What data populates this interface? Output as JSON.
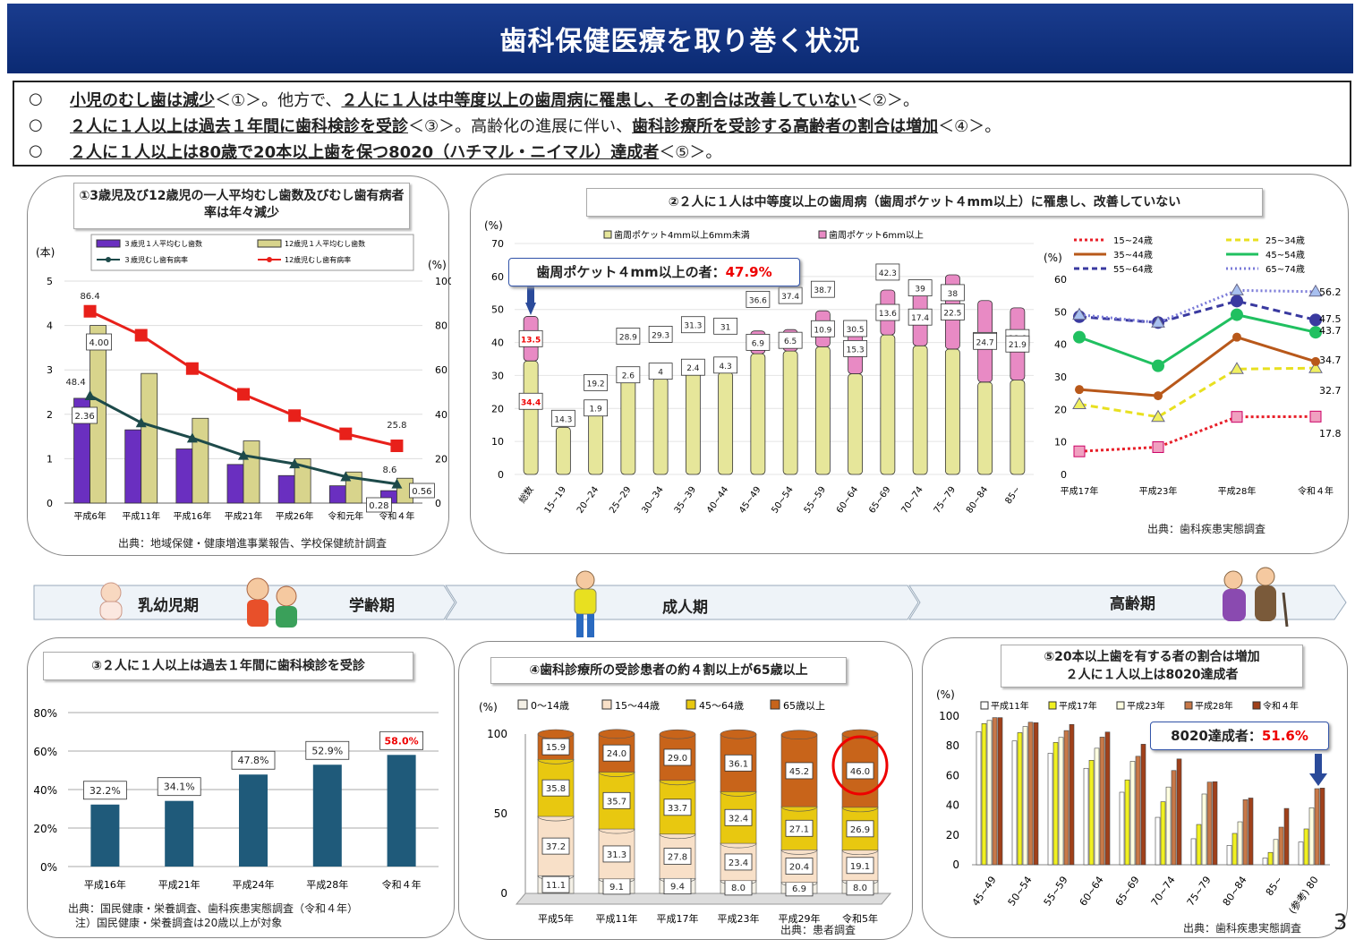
{
  "title": "歯科保健医療を取り巻く状況",
  "page_number": "3",
  "summary": [
    {
      "mark": "○",
      "a": "小児のむし歯は減少",
      "b": "＜①＞。他方で、",
      "c": "２人に１人は中等度以上の歯周病に罹患し、その割合は改善していない",
      "d": "＜②＞。"
    },
    {
      "mark": "○",
      "a": "２人に１人以上は過去１年間に歯科検診を受診",
      "b": "＜③＞。高齢化の進展に伴い、",
      "c": "歯科診療所を受診する高齢者の割合は増加",
      "d": "＜④＞。"
    },
    {
      "mark": "○",
      "a": "２人に１人以上は80歳で20本以上歯を保つ8020（ハチマル・ニイマル）達成者",
      "b": "＜⑤＞。",
      "c": "",
      "d": ""
    }
  ],
  "stages": [
    "乳幼児期",
    "学齢期",
    "成人期",
    "高齢期"
  ],
  "chart_data": [
    {
      "id": "chart1",
      "type": "bar",
      "title": "①3歳児及び12歳児の一人平均むし歯数及びむし歯有病者率は年々減少",
      "left_unit": "(本)",
      "right_unit": "(%)",
      "categories": [
        "平成6年",
        "平成11年",
        "平成16年",
        "平成21年",
        "平成26年",
        "令和元年",
        "令和４年"
      ],
      "ylim_left": [
        0,
        5
      ],
      "ylim_right": [
        0,
        100
      ],
      "left_ticks": [
        "0",
        "1",
        "2",
        "3",
        "4",
        "5"
      ],
      "right_ticks": [
        "0",
        "20",
        "40",
        "60",
        "80",
        "100"
      ],
      "series": [
        {
          "name": "３歳児１人平均むし歯数",
          "kind": "bar",
          "axis": "left",
          "color": "#6a2fc0",
          "values": [
            2.36,
            1.65,
            1.22,
            0.87,
            0.62,
            0.39,
            0.28
          ]
        },
        {
          "name": "12歳児１人平均むし歯数",
          "kind": "bar",
          "axis": "left",
          "color": "#d8d48c",
          "values": [
            4.0,
            2.92,
            1.91,
            1.4,
            1.0,
            0.7,
            0.56
          ]
        },
        {
          "name": "３歳児むし歯有病率",
          "kind": "line",
          "axis": "right",
          "color": "#1d4a4a",
          "values": [
            48.4,
            36.2,
            29.3,
            21.5,
            17.7,
            11.9,
            8.6
          ]
        },
        {
          "name": "12歳児むし歯有病率",
          "kind": "line",
          "axis": "right",
          "color": "#e8201a",
          "values": [
            86.4,
            75.6,
            60.6,
            49.0,
            39.4,
            31.2,
            25.8
          ]
        }
      ],
      "labels": [
        {
          "text": "86.4"
        },
        {
          "text": "4.00"
        },
        {
          "text": "48.4"
        },
        {
          "text": "2.36"
        },
        {
          "text": "25.8"
        },
        {
          "text": "8.6"
        },
        {
          "text": "0.28"
        },
        {
          "text": "0.56"
        }
      ],
      "source": "出典：地域保健・健康増進事業報告、学校保健統計調査"
    },
    {
      "id": "chart2a",
      "type": "bar",
      "title": "②２人に１人は中等度以上の歯周病（歯周ポケット４mm以上）に罹患し、改善していない",
      "unit": "(%)",
      "categories": [
        "総数",
        "15~19",
        "20~24",
        "25~29",
        "30~34",
        "35~39",
        "40~44",
        "45~49",
        "50~54",
        "55~59",
        "60~64",
        "65~69",
        "70~74",
        "75~79",
        "80~84",
        "85~"
      ],
      "ylim": [
        0,
        70
      ],
      "ticks": [
        "0",
        "10",
        "20",
        "30",
        "40",
        "50",
        "60",
        "70"
      ],
      "series": [
        {
          "name": "歯周ポケット4mm以上6mm未満",
          "color": "#e6e69a",
          "values": [
            34.4,
            14.3,
            19.2,
            28.9,
            29.3,
            31.3,
            31.0,
            36.6,
            37.4,
            38.7,
            30.5,
            42.3,
            39.0,
            38.0,
            28.0,
            28.6
          ]
        },
        {
          "name": "歯周ポケット6mm以上",
          "color": "#e88ac4",
          "values": [
            13.5,
            0,
            1.9,
            2.6,
            4.0,
            2.4,
            4.3,
            6.9,
            6.5,
            10.9,
            15.3,
            13.6,
            17.4,
            22.5,
            24.7,
            21.9
          ]
        }
      ],
      "callout": "歯周ポケット４mm以上の者：",
      "callout_value": "47.9%"
    },
    {
      "id": "chart2b",
      "type": "line",
      "unit": "(%)",
      "categories": [
        "平成17年",
        "平成23年",
        "平成28年",
        "令和４年"
      ],
      "ylim": [
        0,
        60
      ],
      "ticks": [
        "0",
        "10",
        "20",
        "30",
        "40",
        "50",
        "60"
      ],
      "series": [
        {
          "name": "15~24歳",
          "color": "#e8202a",
          "values": [
            7.1,
            8.4,
            17.7,
            17.8
          ]
        },
        {
          "name": "25~34歳",
          "color": "#e8e020",
          "values": [
            21.6,
            17.7,
            32.4,
            32.7
          ]
        },
        {
          "name": "35~44歳",
          "color": "#b8581a",
          "values": [
            26.1,
            24.2,
            42.2,
            34.7
          ]
        },
        {
          "name": "45~54歳",
          "color": "#20c060",
          "values": [
            42.2,
            33.4,
            49.1,
            43.7
          ]
        },
        {
          "name": "55~64歳",
          "color": "#3a3aa0",
          "values": [
            48.5,
            46.7,
            53.3,
            47.5
          ]
        },
        {
          "name": "65~74歳",
          "color": "#7a7ad8",
          "values": [
            49.1,
            46.7,
            56.6,
            56.2
          ]
        }
      ],
      "end_labels": [
        "56.2",
        "47.5",
        "43.7",
        "34.7",
        "32.7",
        "17.8"
      ],
      "source": "出典：歯科疾患実態調査"
    },
    {
      "id": "chart3",
      "type": "bar",
      "title": "③２人に１人以上は過去１年間に歯科検診を受診",
      "categories": [
        "平成16年",
        "平成21年",
        "平成24年",
        "平成28年",
        "令和４年"
      ],
      "ylim": [
        0,
        80
      ],
      "ticks": [
        "0%",
        "20%",
        "40%",
        "60%",
        "80%"
      ],
      "values": [
        32.2,
        34.1,
        47.8,
        52.9,
        58.0
      ],
      "value_labels": [
        "32.2%",
        "34.1%",
        "47.8%",
        "52.9%",
        "58.0%"
      ],
      "color": "#1f5a7a",
      "source": "出典：国民健康・栄養調査、歯科疾患実態調査（令和４年）",
      "note": "注）国民健康・栄養調査は20歳以上が対象"
    },
    {
      "id": "chart4",
      "type": "bar",
      "title": "④歯科診療所の受診患者の約４割以上が65歳以上",
      "unit": "(%)",
      "categories": [
        "平成5年",
        "平成11年",
        "平成17年",
        "平成23年",
        "平成29年",
        "令和5年"
      ],
      "ylim": [
        0,
        100
      ],
      "ticks": [
        "0",
        "50",
        "100"
      ],
      "series": [
        {
          "name": "0～14歳",
          "color": "#f4f0e6",
          "values": [
            11.1,
            9.1,
            9.4,
            8.0,
            6.9,
            8.0
          ]
        },
        {
          "name": "15～44歳",
          "color": "#f8e0c8",
          "values": [
            37.2,
            31.3,
            27.8,
            23.4,
            20.4,
            19.1
          ]
        },
        {
          "name": "45～64歳",
          "color": "#e8c810",
          "values": [
            35.8,
            35.7,
            33.7,
            32.4,
            27.1,
            26.9
          ]
        },
        {
          "name": "65歳以上",
          "color": "#c8641a",
          "values": [
            15.9,
            24.0,
            29.0,
            36.1,
            45.2,
            46.0
          ]
        }
      ],
      "source": "出典：患者調査"
    },
    {
      "id": "chart5",
      "type": "bar",
      "title": "⑤20本以上歯を有する者の割合は増加\n２人に１人以上は8020達成者",
      "unit": "(%)",
      "categories": [
        "45~49",
        "50~54",
        "55~59",
        "60~64",
        "65~69",
        "70~74",
        "75~79",
        "80~84",
        "85~",
        "(参考) 80"
      ],
      "ylim": [
        0,
        100
      ],
      "ticks": [
        "0",
        "20",
        "40",
        "60",
        "80",
        "100"
      ],
      "series": [
        {
          "name": "平成11年",
          "color": "#ffffff",
          "values": [
            89.5,
            83.3,
            75.0,
            64.9,
            48.8,
            31.9,
            17.5,
            13.0,
            4.5,
            15.3
          ]
        },
        {
          "name": "平成17年",
          "color": "#f0f020",
          "values": [
            95.0,
            88.9,
            82.3,
            70.3,
            57.1,
            42.4,
            27.1,
            21.1,
            8.3,
            24.1
          ]
        },
        {
          "name": "平成23年",
          "color": "#ffffe0",
          "values": [
            97.1,
            93.0,
            85.7,
            78.4,
            69.6,
            52.3,
            47.6,
            28.9,
            17.0,
            38.3
          ]
        },
        {
          "name": "平成28年",
          "color": "#c87848",
          "values": [
            99.0,
            95.9,
            90.3,
            85.9,
            73.0,
            63.4,
            55.6,
            43.8,
            25.3,
            51.2
          ]
        },
        {
          "name": "令和４年",
          "color": "#a0401a",
          "values": [
            99.0,
            95.6,
            94.4,
            89.3,
            81.1,
            71.2,
            55.9,
            44.9,
            37.9,
            51.6
          ]
        }
      ],
      "callout": "8020達成者：",
      "callout_value": "51.6%",
      "source": "出典：歯科疾患実態調査"
    }
  ]
}
